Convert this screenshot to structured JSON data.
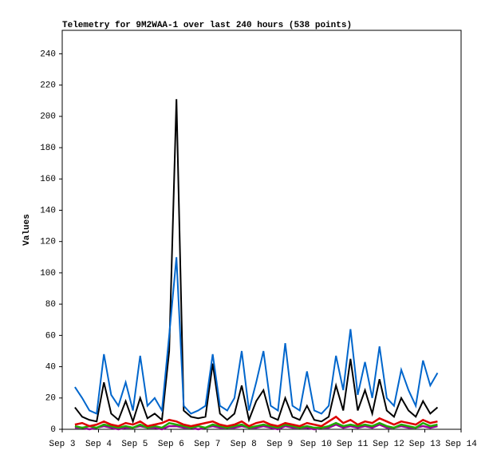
{
  "chart_data": {
    "type": "line",
    "title": "Telemetry for 9M2WAA-1 over last 240 hours (538 points)",
    "y_label": "Values",
    "x": [
      3.35,
      3.55,
      3.75,
      3.95,
      4.15,
      4.35,
      4.55,
      4.75,
      4.95,
      5.15,
      5.35,
      5.55,
      5.75,
      5.95,
      6.15,
      6.35,
      6.55,
      6.75,
      6.95,
      7.15,
      7.35,
      7.55,
      7.75,
      7.95,
      8.15,
      8.35,
      8.55,
      8.75,
      8.95,
      9.15,
      9.35,
      9.55,
      9.75,
      9.95,
      10.15,
      10.35,
      10.55,
      10.75,
      10.95,
      11.15,
      11.35,
      11.55,
      11.75,
      11.95,
      12.15,
      12.35,
      12.55,
      12.75,
      12.95,
      13.15,
      13.35
    ],
    "series": [
      {
        "name": "blue",
        "color": "#0066cc",
        "values": [
          27,
          20,
          12,
          10,
          48,
          22,
          15,
          30,
          12,
          47,
          15,
          20,
          12,
          60,
          110,
          15,
          10,
          12,
          15,
          48,
          15,
          12,
          20,
          50,
          12,
          30,
          50,
          15,
          12,
          55,
          15,
          12,
          37,
          12,
          10,
          15,
          47,
          25,
          64,
          22,
          43,
          20,
          53,
          20,
          15,
          38,
          25,
          15,
          44,
          28,
          36
        ]
      },
      {
        "name": "black",
        "color": "#000000",
        "values": [
          14,
          8,
          6,
          5,
          30,
          10,
          6,
          18,
          5,
          20,
          7,
          10,
          6,
          50,
          211,
          12,
          8,
          7,
          8,
          42,
          10,
          6,
          10,
          28,
          6,
          18,
          25,
          8,
          6,
          20,
          8,
          6,
          15,
          6,
          5,
          8,
          28,
          12,
          45,
          12,
          25,
          10,
          32,
          12,
          8,
          20,
          12,
          8,
          18,
          10,
          14
        ]
      },
      {
        "name": "red",
        "color": "#dd0000",
        "values": [
          3,
          4,
          2,
          3,
          5,
          3,
          2,
          4,
          3,
          5,
          2,
          3,
          4,
          6,
          5,
          3,
          2,
          3,
          4,
          5,
          3,
          2,
          3,
          5,
          2,
          4,
          5,
          3,
          2,
          4,
          3,
          2,
          4,
          3,
          2,
          5,
          8,
          4,
          6,
          3,
          5,
          4,
          7,
          5,
          3,
          5,
          4,
          3,
          6,
          4,
          5
        ]
      },
      {
        "name": "green",
        "color": "#22aa00",
        "values": [
          2,
          1,
          2,
          1,
          3,
          2,
          1,
          2,
          1,
          3,
          1,
          2,
          1,
          4,
          3,
          2,
          1,
          2,
          1,
          3,
          2,
          1,
          2,
          3,
          1,
          2,
          3,
          2,
          1,
          3,
          2,
          1,
          2,
          1,
          1,
          2,
          4,
          2,
          3,
          2,
          3,
          2,
          4,
          2,
          1,
          3,
          2,
          1,
          4,
          2,
          3
        ]
      },
      {
        "name": "purple",
        "color": "#990099",
        "values": [
          1,
          1,
          0,
          1,
          2,
          1,
          0,
          1,
          1,
          2,
          1,
          1,
          0,
          2,
          2,
          1,
          1,
          0,
          1,
          2,
          1,
          1,
          1,
          2,
          1,
          1,
          2,
          1,
          0,
          2,
          1,
          1,
          1,
          0,
          1,
          1,
          3,
          1,
          2,
          1,
          2,
          1,
          3,
          1,
          1,
          2,
          1,
          1,
          2,
          1,
          2
        ]
      }
    ],
    "xlim": [
      3,
      14
    ],
    "xticks": [
      {
        "value": 3,
        "label": "Sep 3"
      },
      {
        "value": 4,
        "label": "Sep 4"
      },
      {
        "value": 5,
        "label": "Sep 5"
      },
      {
        "value": 6,
        "label": "Sep 6"
      },
      {
        "value": 7,
        "label": "Sep 7"
      },
      {
        "value": 8,
        "label": "Sep 8"
      },
      {
        "value": 9,
        "label": "Sep 9"
      },
      {
        "value": 10,
        "label": "Sep 10"
      },
      {
        "value": 11,
        "label": "Sep 11"
      },
      {
        "value": 12,
        "label": "Sep 12"
      },
      {
        "value": 13,
        "label": "Sep 13"
      },
      {
        "value": 14,
        "label": "Sep 14"
      }
    ],
    "ylim": [
      0,
      255
    ],
    "yticks": [
      0,
      20,
      40,
      60,
      80,
      100,
      120,
      140,
      160,
      180,
      200,
      220,
      240
    ],
    "grid": false
  }
}
